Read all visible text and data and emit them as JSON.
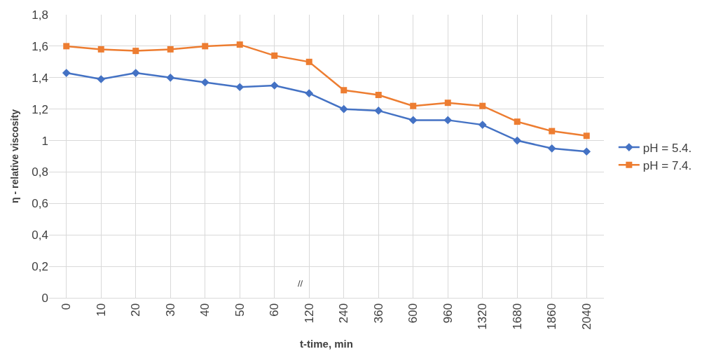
{
  "chart_data": {
    "type": "line",
    "xlabel": "t-time, min",
    "ylabel": "η - relative viscosity",
    "categories": [
      "0",
      "10",
      "20",
      "30",
      "40",
      "50",
      "60",
      "120",
      "240",
      "360",
      "600",
      "960",
      "1320",
      "1680",
      "1860",
      "2040"
    ],
    "series": [
      {
        "name": "pH = 5.4.",
        "color": "#4472c4",
        "marker": "diamond",
        "values": [
          1.43,
          1.39,
          1.43,
          1.4,
          1.37,
          1.34,
          1.35,
          1.3,
          1.2,
          1.19,
          1.13,
          1.13,
          1.1,
          1.0,
          0.95,
          0.93
        ]
      },
      {
        "name": "pH = 7.4.",
        "color": "#ed7d31",
        "marker": "square",
        "values": [
          1.6,
          1.58,
          1.57,
          1.58,
          1.6,
          1.61,
          1.54,
          1.5,
          1.32,
          1.29,
          1.22,
          1.24,
          1.22,
          1.12,
          1.06,
          1.03
        ]
      }
    ],
    "ylim": [
      0,
      1.8
    ],
    "yticks": [
      0,
      {
        "value": 0.2,
        "label": "0,2"
      },
      {
        "value": 0.4,
        "label": "0,4"
      },
      {
        "value": 0.6,
        "label": "0,6"
      },
      {
        "value": 0.8,
        "label": "0,8"
      },
      1,
      {
        "value": 1.2,
        "label": "1,2"
      },
      {
        "value": 1.4,
        "label": "1,4"
      },
      {
        "value": 1.6,
        "label": "1,6"
      },
      {
        "value": 1.8,
        "label": "1,8"
      }
    ],
    "annotations": [
      "//"
    ],
    "grid": true,
    "legend": "right",
    "line_style": "solid"
  }
}
